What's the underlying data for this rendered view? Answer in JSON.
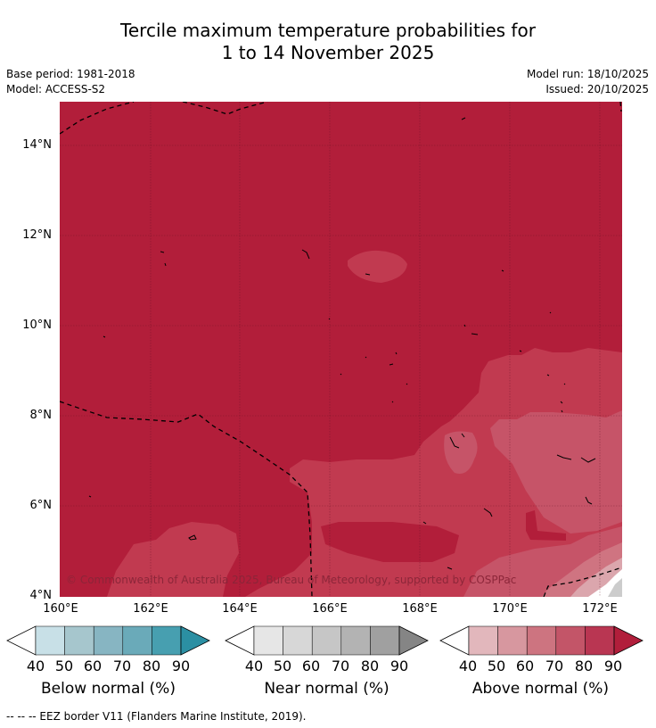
{
  "title": {
    "line1": "Tercile maximum temperature probabilities for",
    "line2": "1 to 14 November 2025"
  },
  "meta": {
    "base_period": "Base period: 1981-2018",
    "model": "Model: ACCESS-S2",
    "model_run": "Model run: 18/10/2025",
    "issued": "Issued: 20/10/2025"
  },
  "map": {
    "lat_labels": [
      "14°N",
      "12°N",
      "10°N",
      "8°N",
      "6°N",
      "4°N"
    ],
    "lon_labels": [
      "160°E",
      "162°E",
      "164°E",
      "166°E",
      "168°E",
      "170°E",
      "172°E"
    ],
    "copyright": "© Commonwealth of Australia 2025, Bureau of Meteorology, supported by COSPPac"
  },
  "legends": [
    {
      "name": "below",
      "title": "Below normal (%)",
      "ticks": [
        "40",
        "50",
        "60",
        "70",
        "80",
        "90"
      ],
      "colors": [
        "#ffffff",
        "#c8e0e7",
        "#a6c6cd",
        "#87b5c2",
        "#6aaab9",
        "#479fb0",
        "#2b8fa3"
      ]
    },
    {
      "name": "near",
      "title": "Near normal (%)",
      "ticks": [
        "40",
        "50",
        "60",
        "70",
        "80",
        "90"
      ],
      "colors": [
        "#ffffff",
        "#e6e6e6",
        "#d7d7d7",
        "#c6c6c6",
        "#b3b3b3",
        "#a0a0a0",
        "#858585"
      ]
    },
    {
      "name": "above",
      "title": "Above normal (%)",
      "ticks": [
        "40",
        "50",
        "60",
        "70",
        "80",
        "90"
      ],
      "colors": [
        "#ffffff",
        "#e2b7bc",
        "#d7979f",
        "#cd7480",
        "#c35568",
        "#b93652",
        "#b11e3b"
      ]
    }
  ],
  "footer": "--  --  -- EEZ border V11 (Flanders Marine Institute, 2019).",
  "colors": {
    "c90": "#b21e3a",
    "c80": "#c13a50",
    "c70": "#c65468",
    "c60": "#cf7481",
    "c50": "#dba6ad",
    "near": "#cccccc"
  }
}
